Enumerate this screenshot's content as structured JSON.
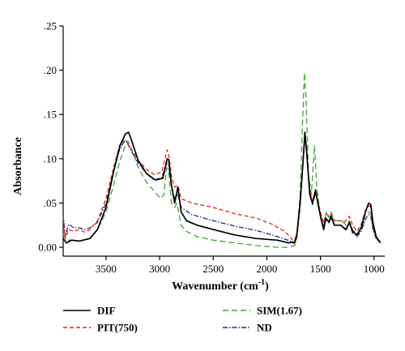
{
  "chart_data": {
    "type": "line",
    "xlabel": "Wavenumber (cm",
    "xlabel_sup": "-1",
    "xlabel_end": ")",
    "ylabel": "Absorbance",
    "xlim": [
      3900,
      900
    ],
    "ylim": [
      -0.01,
      0.25
    ],
    "x_reversed": true,
    "x_ticks": [
      3500,
      3000,
      2500,
      2000,
      1500,
      1000
    ],
    "x_tick_labels": [
      "3500",
      "3000",
      "2500",
      "2000",
      "1500",
      "1000"
    ],
    "y_ticks": [
      0.0,
      0.05,
      0.1,
      0.15,
      0.2,
      0.25
    ],
    "y_tick_labels": [
      "0.00",
      ".05",
      ".10",
      ".15",
      ".20",
      ".25"
    ],
    "grid": false,
    "legend_placement": "bottom",
    "series": [
      {
        "name": "DIF",
        "color": "#000000",
        "dash": "solid",
        "points": [
          [
            3900,
            0.01
          ],
          [
            3870,
            0.005
          ],
          [
            3820,
            0.008
          ],
          [
            3750,
            0.007
          ],
          [
            3650,
            0.01
          ],
          [
            3580,
            0.02
          ],
          [
            3500,
            0.045
          ],
          [
            3430,
            0.085
          ],
          [
            3370,
            0.115
          ],
          [
            3320,
            0.128
          ],
          [
            3290,
            0.13
          ],
          [
            3260,
            0.12
          ],
          [
            3200,
            0.098
          ],
          [
            3120,
            0.083
          ],
          [
            3040,
            0.076
          ],
          [
            2970,
            0.078
          ],
          [
            2930,
            0.1
          ],
          [
            2915,
            0.099
          ],
          [
            2890,
            0.07
          ],
          [
            2860,
            0.05
          ],
          [
            2830,
            0.068
          ],
          [
            2800,
            0.04
          ],
          [
            2750,
            0.03
          ],
          [
            2650,
            0.025
          ],
          [
            2500,
            0.02
          ],
          [
            2300,
            0.014
          ],
          [
            2100,
            0.01
          ],
          [
            1900,
            0.008
          ],
          [
            1800,
            0.005
          ],
          [
            1740,
            0.006
          ],
          [
            1720,
            0.015
          ],
          [
            1690,
            0.05
          ],
          [
            1660,
            0.1
          ],
          [
            1645,
            0.13
          ],
          [
            1630,
            0.11
          ],
          [
            1600,
            0.06
          ],
          [
            1575,
            0.05
          ],
          [
            1545,
            0.065
          ],
          [
            1525,
            0.05
          ],
          [
            1490,
            0.03
          ],
          [
            1470,
            0.02
          ],
          [
            1450,
            0.033
          ],
          [
            1420,
            0.028
          ],
          [
            1400,
            0.035
          ],
          [
            1370,
            0.025
          ],
          [
            1310,
            0.025
          ],
          [
            1260,
            0.02
          ],
          [
            1230,
            0.028
          ],
          [
            1200,
            0.018
          ],
          [
            1160,
            0.014
          ],
          [
            1120,
            0.022
          ],
          [
            1080,
            0.04
          ],
          [
            1050,
            0.05
          ],
          [
            1030,
            0.048
          ],
          [
            1010,
            0.028
          ],
          [
            980,
            0.012
          ],
          [
            940,
            0.005
          ]
        ]
      },
      {
        "name": "PIT(750)",
        "color": "#e8221b",
        "dash": "5,3",
        "points": [
          [
            3900,
            0.035
          ],
          [
            3880,
            0.01
          ],
          [
            3850,
            0.02
          ],
          [
            3800,
            0.018
          ],
          [
            3750,
            0.02
          ],
          [
            3700,
            0.017
          ],
          [
            3650,
            0.02
          ],
          [
            3580,
            0.03
          ],
          [
            3500,
            0.055
          ],
          [
            3430,
            0.09
          ],
          [
            3380,
            0.112
          ],
          [
            3340,
            0.12
          ],
          [
            3310,
            0.12
          ],
          [
            3270,
            0.112
          ],
          [
            3200,
            0.098
          ],
          [
            3120,
            0.088
          ],
          [
            3050,
            0.082
          ],
          [
            2980,
            0.085
          ],
          [
            2930,
            0.11
          ],
          [
            2915,
            0.105
          ],
          [
            2890,
            0.08
          ],
          [
            2860,
            0.068
          ],
          [
            2830,
            0.07
          ],
          [
            2800,
            0.055
          ],
          [
            2700,
            0.05
          ],
          [
            2500,
            0.045
          ],
          [
            2300,
            0.038
          ],
          [
            2100,
            0.033
          ],
          [
            1950,
            0.026
          ],
          [
            1850,
            0.019
          ],
          [
            1780,
            0.012
          ],
          [
            1740,
            0.004
          ],
          [
            1720,
            0.01
          ],
          [
            1690,
            0.045
          ],
          [
            1660,
            0.1
          ],
          [
            1645,
            0.127
          ],
          [
            1630,
            0.108
          ],
          [
            1600,
            0.065
          ],
          [
            1575,
            0.05
          ],
          [
            1545,
            0.06
          ],
          [
            1520,
            0.05
          ],
          [
            1490,
            0.035
          ],
          [
            1470,
            0.028
          ],
          [
            1445,
            0.038
          ],
          [
            1420,
            0.035
          ],
          [
            1400,
            0.038
          ],
          [
            1370,
            0.03
          ],
          [
            1310,
            0.03
          ],
          [
            1280,
            0.028
          ],
          [
            1230,
            0.035
          ],
          [
            1200,
            0.025
          ],
          [
            1160,
            0.018
          ],
          [
            1120,
            0.026
          ],
          [
            1080,
            0.042
          ],
          [
            1050,
            0.047
          ],
          [
            1030,
            0.045
          ],
          [
            1010,
            0.025
          ],
          [
            980,
            0.012
          ],
          [
            940,
            0.006
          ]
        ]
      },
      {
        "name": "SIM(1.67)",
        "color": "#3fa535",
        "dash": "7,4",
        "points": [
          [
            3900,
            0.015
          ],
          [
            3870,
            0.008
          ],
          [
            3820,
            0.008
          ],
          [
            3750,
            0.007
          ],
          [
            3650,
            0.01
          ],
          [
            3580,
            0.02
          ],
          [
            3500,
            0.04
          ],
          [
            3430,
            0.07
          ],
          [
            3370,
            0.098
          ],
          [
            3320,
            0.115
          ],
          [
            3295,
            0.12
          ],
          [
            3260,
            0.11
          ],
          [
            3200,
            0.09
          ],
          [
            3120,
            0.073
          ],
          [
            3040,
            0.062
          ],
          [
            2990,
            0.055
          ],
          [
            2960,
            0.06
          ],
          [
            2935,
            0.09
          ],
          [
            2915,
            0.085
          ],
          [
            2890,
            0.05
          ],
          [
            2860,
            0.045
          ],
          [
            2840,
            0.05
          ],
          [
            2800,
            0.025
          ],
          [
            2750,
            0.018
          ],
          [
            2650,
            0.012
          ],
          [
            2500,
            0.008
          ],
          [
            2300,
            0.005
          ],
          [
            2100,
            0.002
          ],
          [
            1900,
            0.0
          ],
          [
            1800,
            0.0
          ],
          [
            1740,
            0.002
          ],
          [
            1720,
            0.012
          ],
          [
            1690,
            0.06
          ],
          [
            1670,
            0.13
          ],
          [
            1650,
            0.197
          ],
          [
            1635,
            0.17
          ],
          [
            1610,
            0.08
          ],
          [
            1585,
            0.06
          ],
          [
            1555,
            0.115
          ],
          [
            1535,
            0.07
          ],
          [
            1500,
            0.035
          ],
          [
            1470,
            0.025
          ],
          [
            1445,
            0.04
          ],
          [
            1420,
            0.033
          ],
          [
            1400,
            0.04
          ],
          [
            1370,
            0.03
          ],
          [
            1300,
            0.03
          ],
          [
            1260,
            0.025
          ],
          [
            1230,
            0.03
          ],
          [
            1200,
            0.02
          ],
          [
            1150,
            0.015
          ],
          [
            1100,
            0.025
          ],
          [
            1080,
            0.04
          ],
          [
            1050,
            0.04
          ],
          [
            1030,
            0.038
          ],
          [
            1010,
            0.022
          ],
          [
            980,
            0.01
          ],
          [
            940,
            0.005
          ]
        ]
      },
      {
        "name": "ND",
        "color": "#1c2a8a",
        "dash": "6,2,1.5,2",
        "points": [
          [
            3900,
            0.038
          ],
          [
            3880,
            0.012
          ],
          [
            3850,
            0.026
          ],
          [
            3800,
            0.022
          ],
          [
            3750,
            0.022
          ],
          [
            3700,
            0.02
          ],
          [
            3650,
            0.022
          ],
          [
            3580,
            0.028
          ],
          [
            3500,
            0.05
          ],
          [
            3430,
            0.085
          ],
          [
            3380,
            0.108
          ],
          [
            3340,
            0.118
          ],
          [
            3310,
            0.12
          ],
          [
            3270,
            0.11
          ],
          [
            3200,
            0.095
          ],
          [
            3120,
            0.083
          ],
          [
            3050,
            0.076
          ],
          [
            2980,
            0.079
          ],
          [
            2935,
            0.095
          ],
          [
            2915,
            0.092
          ],
          [
            2890,
            0.07
          ],
          [
            2860,
            0.055
          ],
          [
            2830,
            0.06
          ],
          [
            2800,
            0.045
          ],
          [
            2700,
            0.037
          ],
          [
            2500,
            0.03
          ],
          [
            2300,
            0.024
          ],
          [
            2100,
            0.019
          ],
          [
            1950,
            0.014
          ],
          [
            1850,
            0.01
          ],
          [
            1780,
            0.007
          ],
          [
            1740,
            0.004
          ],
          [
            1720,
            0.012
          ],
          [
            1690,
            0.05
          ],
          [
            1660,
            0.1
          ],
          [
            1645,
            0.125
          ],
          [
            1630,
            0.107
          ],
          [
            1600,
            0.065
          ],
          [
            1575,
            0.048
          ],
          [
            1545,
            0.062
          ],
          [
            1520,
            0.048
          ],
          [
            1490,
            0.03
          ],
          [
            1470,
            0.022
          ],
          [
            1445,
            0.032
          ],
          [
            1420,
            0.03
          ],
          [
            1400,
            0.033
          ],
          [
            1370,
            0.025
          ],
          [
            1310,
            0.025
          ],
          [
            1270,
            0.02
          ],
          [
            1230,
            0.028
          ],
          [
            1200,
            0.016
          ],
          [
            1160,
            0.012
          ],
          [
            1120,
            0.018
          ],
          [
            1080,
            0.032
          ],
          [
            1050,
            0.037
          ],
          [
            1030,
            0.035
          ],
          [
            1010,
            0.02
          ],
          [
            980,
            0.01
          ],
          [
            940,
            0.005
          ]
        ]
      }
    ]
  }
}
